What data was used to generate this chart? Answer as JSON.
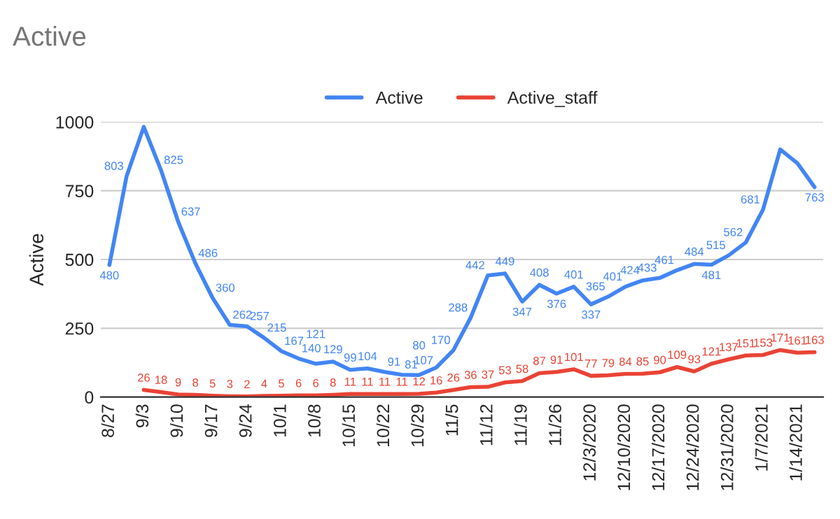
{
  "chart_data": {
    "type": "line",
    "title": "Active",
    "ylabel": "Active",
    "categories": [
      "8/27",
      null,
      "9/3",
      null,
      "9/10",
      null,
      "9/17",
      null,
      "9/24",
      null,
      "10/1",
      null,
      "10/8",
      null,
      "10/15",
      null,
      "10/22",
      null,
      "10/29",
      null,
      "11/5",
      null,
      "11/12",
      null,
      "11/19",
      null,
      "11/26",
      null,
      "12/3/2020",
      null,
      "12/10/2020",
      null,
      "12/17/2020",
      null,
      "12/24/2020",
      null,
      "12/31/2020",
      null,
      "1/7/2021",
      null,
      "1/14/2021",
      null
    ],
    "series": [
      {
        "name": "Active",
        "color": "#4285f4",
        "values": [
          480,
          803,
          982,
          825,
          637,
          486,
          360,
          262,
          257,
          215,
          167,
          140,
          121,
          129,
          99,
          104,
          91,
          81,
          80,
          107,
          170,
          288,
          442,
          449,
          347,
          408,
          376,
          401,
          337,
          365,
          401,
          424,
          433,
          461,
          484,
          481,
          515,
          562,
          681,
          900,
          850,
          763
        ],
        "value_labels": [
          "480",
          "803",
          null,
          "825",
          "637",
          "486",
          "360",
          "262",
          "257",
          "215",
          "167",
          "140",
          "121",
          "129",
          "99",
          "104",
          "91",
          "81",
          "80",
          "107",
          "170",
          "288",
          "442",
          "449",
          "347",
          "408",
          "376",
          "401",
          "337",
          "365",
          "401",
          "424",
          "433",
          "461",
          "484",
          "481",
          "515",
          "562",
          "681",
          null,
          null,
          "763"
        ]
      },
      {
        "name": "Active_staff",
        "color": "#ea4335",
        "values": [
          null,
          null,
          26,
          18,
          9,
          8,
          5,
          3,
          2,
          4,
          5,
          6,
          6,
          8,
          11,
          11,
          11,
          11,
          12,
          16,
          26,
          36,
          37,
          53,
          58,
          87,
          91,
          101,
          77,
          79,
          84,
          85,
          90,
          109,
          93,
          121,
          137,
          151,
          153,
          171,
          161,
          163
        ],
        "value_labels": [
          null,
          null,
          "26",
          "18",
          "9",
          "8",
          "5",
          "3",
          "2",
          "4",
          "5",
          "6",
          "6",
          "8",
          "11",
          "11",
          "11",
          "11",
          "12",
          "16",
          "26",
          "36",
          "37",
          "53",
          "58",
          "87",
          "91",
          "101",
          "77",
          "79",
          "84",
          "85",
          "90",
          "109",
          "93",
          "121",
          "137",
          "151",
          "153",
          "171",
          "161",
          "163"
        ]
      }
    ],
    "ylim": [
      0,
      1000
    ],
    "yticks": [
      0,
      250,
      500,
      750,
      1000
    ],
    "grid": "y",
    "legend": "top",
    "marker": "none",
    "line_style": "solid"
  }
}
